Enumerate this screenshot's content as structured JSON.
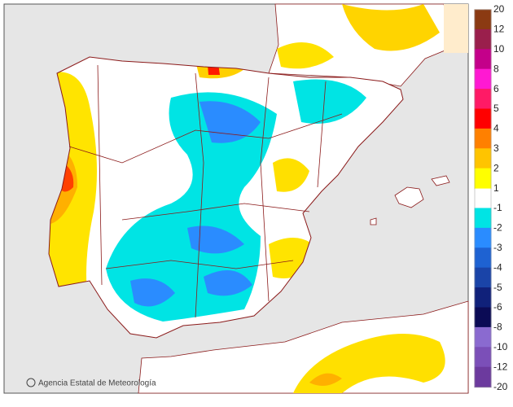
{
  "map": {
    "credit": "Agencia Estatal de Meteorología"
  },
  "legend": {
    "labels": [
      20,
      12,
      10,
      8,
      6,
      5,
      4,
      3,
      2,
      1,
      -1,
      -2,
      -3,
      -4,
      -5,
      -6,
      -8,
      -10,
      -12,
      -20
    ],
    "colors": [
      "#8b3a12",
      "#9a1f4c",
      "#c4008a",
      "#ff19d2",
      "#ff1a66",
      "#ff0000",
      "#ff8000",
      "#ffc400",
      "#ffff00",
      "#ffffff",
      "#00e4e4",
      "#2a8cff",
      "#1e62d2",
      "#1a44a8",
      "#10217a",
      "#0b0b55",
      "#8a6ad0",
      "#7b4fb8",
      "#6c3a9e"
    ]
  }
}
